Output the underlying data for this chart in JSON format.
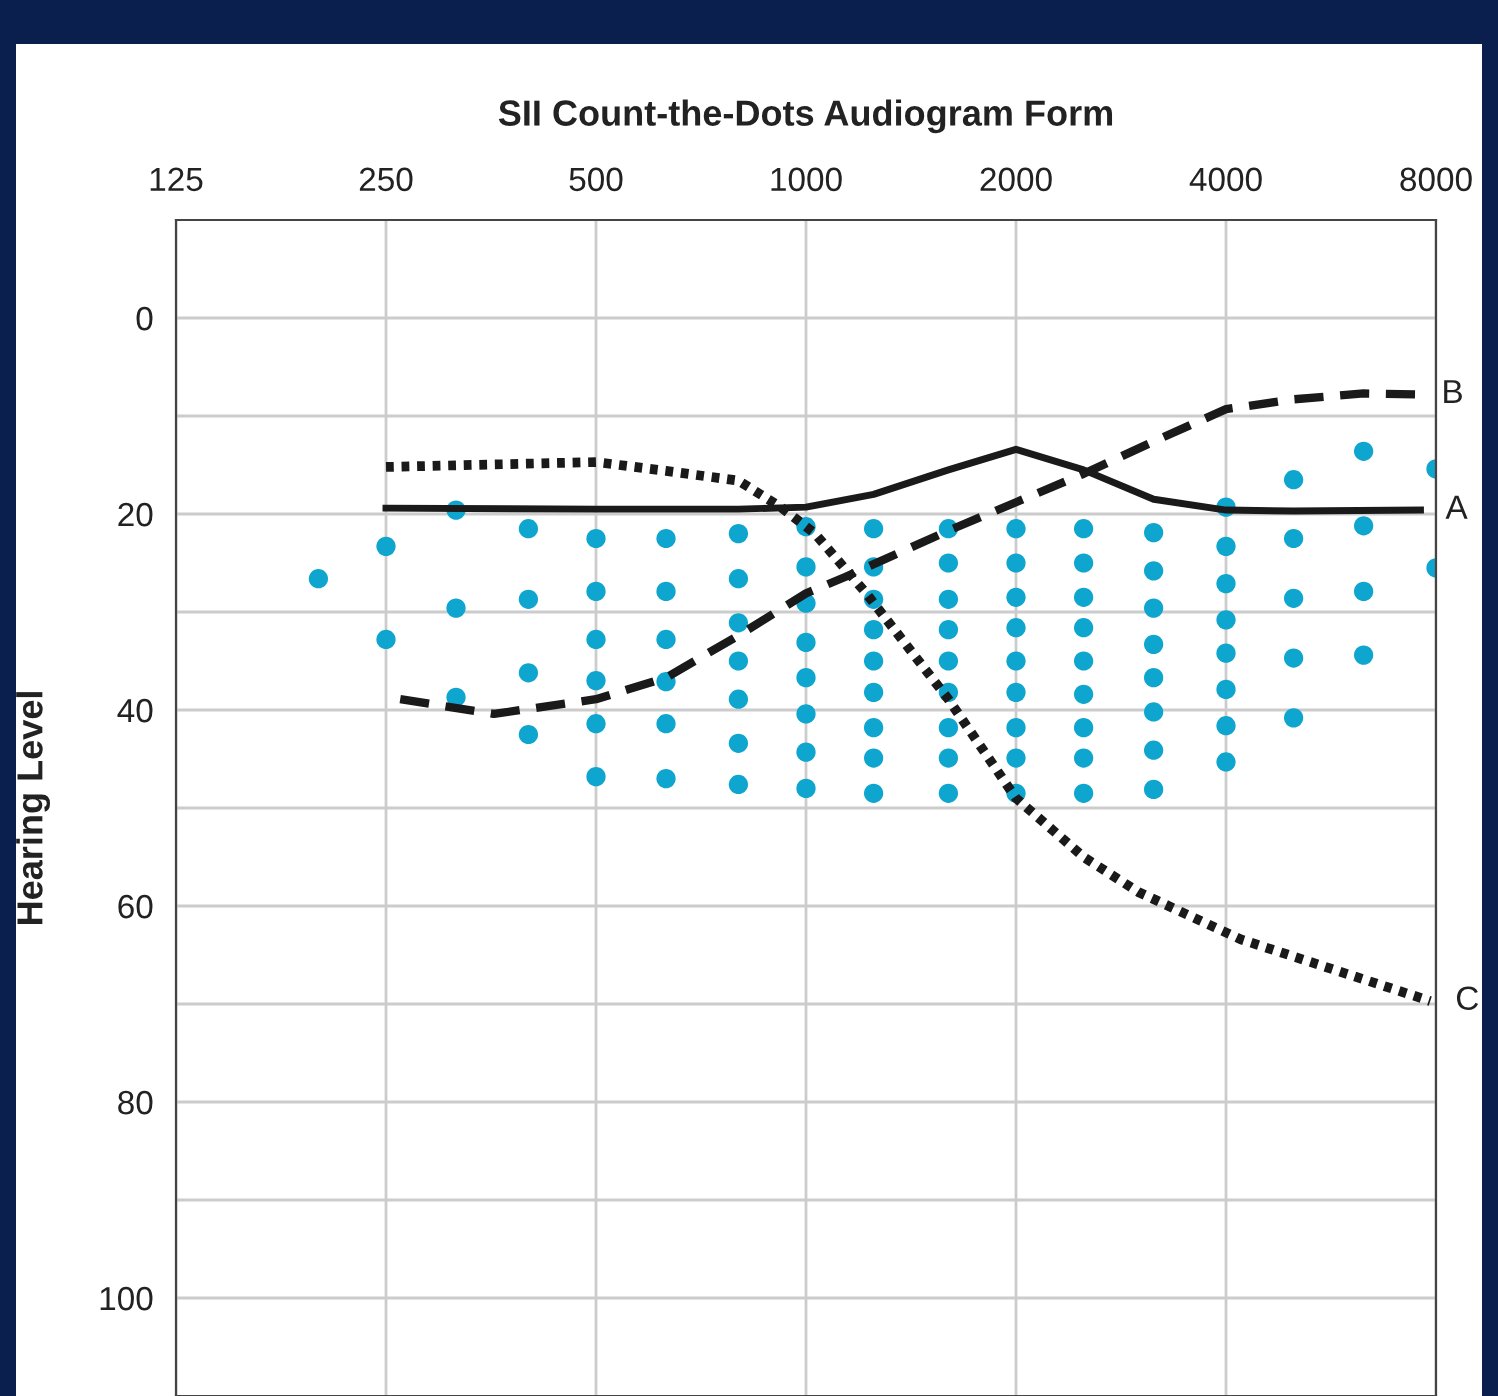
{
  "chart_data": {
    "type": "scatter",
    "title": "SII Count-the-Dots Audiogram Form",
    "ylabel": "Hearing Level",
    "log": "x",
    "xlim": [
      125,
      8000
    ],
    "xticks": [
      125,
      250,
      500,
      1000,
      2000,
      4000,
      8000
    ],
    "ylim": [
      110,
      -10
    ],
    "yticks": [
      0,
      {
        "value": 10,
        "label": null
      },
      20,
      {
        "value": 30,
        "label": null
      },
      40,
      {
        "value": 50,
        "label": null
      },
      60,
      {
        "value": 70,
        "label": null
      },
      80,
      {
        "value": 90,
        "label": null
      },
      100
    ],
    "grid": true,
    "legend": false,
    "series": [
      {
        "color": "#0ea5cf",
        "marker": "circle",
        "x": [
          200,
          250,
          250,
          315,
          315,
          315,
          400,
          400,
          400,
          400,
          500,
          500,
          500,
          500,
          500,
          500,
          630,
          630,
          630,
          630,
          630,
          630,
          800,
          800,
          800,
          800,
          800,
          800,
          800,
          1000,
          1000,
          1000,
          1000,
          1000,
          1000,
          1000,
          1000,
          1250,
          1250,
          1250,
          1250,
          1250,
          1250,
          1250,
          1250,
          1250,
          1600,
          1600,
          1600,
          1600,
          1600,
          1600,
          1600,
          1600,
          1600,
          2000,
          2000,
          2000,
          2000,
          2000,
          2000,
          2000,
          2000,
          2000,
          2500,
          2500,
          2500,
          2500,
          2500,
          2500,
          2500,
          2500,
          2500,
          3150,
          3150,
          3150,
          3150,
          3150,
          3150,
          3150,
          3150,
          4000,
          4000,
          4000,
          4000,
          4000,
          4000,
          4000,
          4000,
          5000,
          5000,
          5000,
          5000,
          5000,
          6300,
          6300,
          6300,
          6300,
          8000,
          8000
        ],
        "values": [
          26.6,
          23.3,
          32.8,
          19.6,
          29.6,
          38.7,
          21.5,
          28.7,
          36.2,
          42.5,
          22.5,
          27.9,
          32.8,
          37.0,
          41.4,
          46.8,
          22.5,
          27.9,
          32.8,
          37.1,
          41.4,
          47.0,
          22.0,
          26.6,
          31.1,
          35.0,
          38.9,
          43.4,
          47.6,
          21.3,
          25.4,
          29.1,
          33.1,
          36.7,
          40.4,
          44.3,
          48.0,
          21.5,
          25.4,
          28.7,
          31.8,
          35.0,
          38.2,
          41.8,
          44.9,
          48.5,
          21.5,
          25.0,
          28.7,
          31.8,
          35.0,
          38.2,
          41.8,
          44.9,
          48.5,
          21.5,
          25.0,
          28.5,
          31.6,
          35.0,
          38.2,
          41.8,
          44.9,
          48.5,
          21.5,
          25.0,
          28.5,
          31.6,
          35.0,
          38.4,
          41.8,
          44.9,
          48.5,
          21.9,
          25.8,
          29.6,
          33.3,
          36.7,
          40.2,
          44.1,
          48.1,
          19.3,
          23.3,
          27.1,
          30.8,
          34.2,
          37.9,
          41.6,
          45.3,
          16.5,
          22.5,
          28.6,
          34.7,
          40.8,
          13.6,
          21.2,
          27.9,
          34.4,
          15.4,
          25.5
        ]
      },
      {
        "type": "line",
        "name": "A",
        "color": "#1a1a1a",
        "line_style": "solid",
        "x": [
          250,
          500,
          800,
          1000,
          1250,
          1600,
          2000,
          2500,
          3150,
          4000,
          5000,
          7600
        ],
        "values": [
          19.4,
          19.5,
          19.5,
          19.3,
          18,
          15.5,
          13.4,
          15.5,
          18.5,
          19.6,
          19.7,
          19.6
        ]
      },
      {
        "type": "line",
        "name": "B",
        "color": "#1a1a1a",
        "line_style": "dashed",
        "x": [
          262,
          357,
          500,
          630,
          800,
          1000,
          1140,
          1600,
          2000,
          2500,
          3150,
          4000,
          5000,
          6300,
          7500
        ],
        "values": [
          38.9,
          40.4,
          38.9,
          36.7,
          32.4,
          28.1,
          26.4,
          21.7,
          18.8,
          15.9,
          12.6,
          9.3,
          8.3,
          7.7,
          7.8
        ]
      },
      {
        "type": "line",
        "name": "C",
        "color": "#1a1a1a",
        "line_style": "dotted",
        "x": [
          250,
          500,
          630,
          800,
          920,
          1030,
          1220,
          1600,
          2000,
          2500,
          3000,
          4200,
          7850
        ],
        "values": [
          15.2,
          14.7,
          15.6,
          16.6,
          19.3,
          22.0,
          28.1,
          38.9,
          49.0,
          55.0,
          58.6,
          63.4,
          69.7
        ]
      }
    ]
  }
}
